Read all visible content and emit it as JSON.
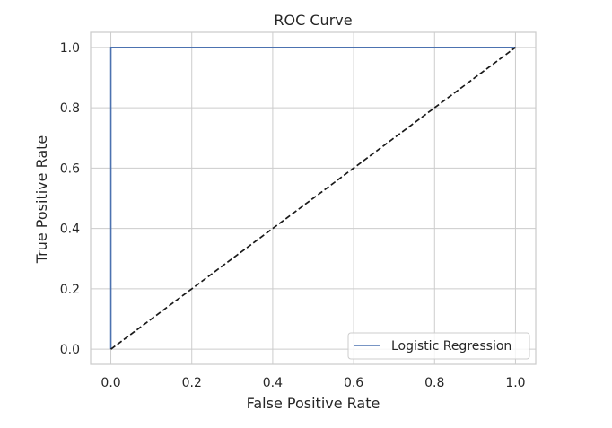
{
  "chart_data": {
    "type": "line",
    "title": "ROC Curve",
    "xlabel": "False Positive Rate",
    "ylabel": "True Positive Rate",
    "xlim": [
      -0.05,
      1.05
    ],
    "ylim": [
      -0.05,
      1.05
    ],
    "x_ticks": [
      0.0,
      0.2,
      0.4,
      0.6,
      0.8,
      1.0
    ],
    "y_ticks": [
      0.0,
      0.2,
      0.4,
      0.6,
      0.8,
      1.0
    ],
    "x_tick_labels": [
      "0.0",
      "0.2",
      "0.4",
      "0.6",
      "0.8",
      "1.0"
    ],
    "y_tick_labels": [
      "0.0",
      "0.2",
      "0.4",
      "0.6",
      "0.8",
      "1.0"
    ],
    "grid": true,
    "legend_position": "lower-right",
    "series": [
      {
        "name": "Logistic Regression",
        "style": "solid",
        "color": "#4c72b0",
        "x": [
          0.0,
          0.0,
          1.0
        ],
        "y": [
          0.0,
          1.0,
          1.0
        ]
      },
      {
        "style": "dashed",
        "color": "#1a1a1a",
        "x": [
          0.0,
          1.0
        ],
        "y": [
          0.0,
          1.0
        ]
      }
    ]
  }
}
